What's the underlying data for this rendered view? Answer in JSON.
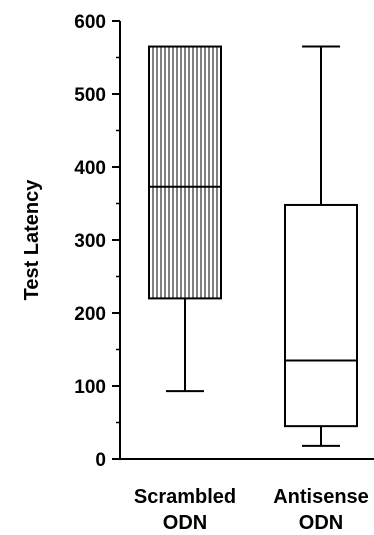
{
  "chart_data": {
    "type": "boxplot",
    "ylabel": "Test Latency",
    "ylim": [
      0,
      600
    ],
    "yticks": [
      0,
      100,
      200,
      300,
      400,
      500,
      600
    ],
    "yticks_minor_step": 50,
    "grid": false,
    "categories": [
      {
        "line1": "Scrambled",
        "line2": "ODN"
      },
      {
        "line1": "Antisense",
        "line2": "ODN"
      }
    ],
    "boxes": [
      {
        "min": 93,
        "q1": 220,
        "median": 373,
        "q3": 565,
        "max": 565,
        "fill": "vertical-hatch"
      },
      {
        "min": 18,
        "q1": 45,
        "median": 135,
        "q3": 348,
        "max": 565,
        "fill": "none"
      }
    ],
    "colors": {
      "stroke": "#000000",
      "background": "#ffffff"
    }
  }
}
